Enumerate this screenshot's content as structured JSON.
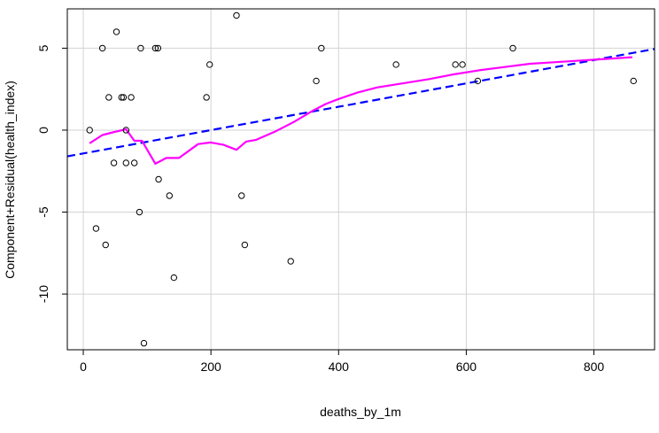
{
  "chart_data": {
    "type": "scatter",
    "xlabel": "deaths_by_1m",
    "ylabel": "Component+Residual(health_index)",
    "xlim": [
      -25,
      895
    ],
    "ylim": [
      -13.4,
      7.4
    ],
    "x_ticks": [
      0,
      200,
      400,
      600,
      800
    ],
    "y_ticks": [
      -10,
      -5,
      0,
      5
    ],
    "x_tick_labels": [
      "0",
      "200",
      "400",
      "600",
      "800"
    ],
    "y_tick_labels": [
      "-10",
      "-5",
      "0",
      "5"
    ],
    "grid": true,
    "points": [
      {
        "x": 10,
        "y": 0
      },
      {
        "x": 20,
        "y": -6
      },
      {
        "x": 30,
        "y": 5
      },
      {
        "x": 35,
        "y": -7
      },
      {
        "x": 40,
        "y": 2
      },
      {
        "x": 48,
        "y": -2
      },
      {
        "x": 52,
        "y": 6
      },
      {
        "x": 60,
        "y": 2
      },
      {
        "x": 63,
        "y": 2
      },
      {
        "x": 67,
        "y": 0
      },
      {
        "x": 67,
        "y": -2
      },
      {
        "x": 75,
        "y": 2
      },
      {
        "x": 80,
        "y": -2
      },
      {
        "x": 88,
        "y": -5
      },
      {
        "x": 90,
        "y": 5
      },
      {
        "x": 95,
        "y": -13
      },
      {
        "x": 113,
        "y": 5
      },
      {
        "x": 117,
        "y": 5
      },
      {
        "x": 118,
        "y": -3
      },
      {
        "x": 135,
        "y": -4
      },
      {
        "x": 142,
        "y": -9
      },
      {
        "x": 193,
        "y": 2
      },
      {
        "x": 198,
        "y": 4
      },
      {
        "x": 240,
        "y": 7
      },
      {
        "x": 248,
        "y": -4
      },
      {
        "x": 253,
        "y": -7
      },
      {
        "x": 325,
        "y": -8
      },
      {
        "x": 365,
        "y": 3
      },
      {
        "x": 373,
        "y": 5
      },
      {
        "x": 490,
        "y": 4
      },
      {
        "x": 583,
        "y": 4
      },
      {
        "x": 594,
        "y": 4
      },
      {
        "x": 618,
        "y": 3
      },
      {
        "x": 673,
        "y": 5
      },
      {
        "x": 862,
        "y": 3
      }
    ],
    "series": [
      {
        "type": "line",
        "style": "dashed",
        "color": "#0000ff",
        "x": [
          -25,
          895
        ],
        "y": [
          -1.6,
          4.95
        ]
      },
      {
        "type": "line",
        "style": "solid",
        "color": "#ff00ff",
        "x": [
          10,
          30,
          50,
          67,
          80,
          92,
          113,
          130,
          150,
          180,
          200,
          220,
          240,
          255,
          270,
          300,
          330,
          360,
          380,
          400,
          430,
          460,
          500,
          540,
          580,
          620,
          660,
          700,
          740,
          780,
          820,
          860
        ],
        "y": [
          -0.8,
          -0.3,
          -0.1,
          0.05,
          -0.65,
          -0.65,
          -2.05,
          -1.7,
          -1.7,
          -0.85,
          -0.75,
          -0.9,
          -1.2,
          -0.7,
          -0.6,
          -0.1,
          0.5,
          1.2,
          1.6,
          1.9,
          2.3,
          2.6,
          2.85,
          3.1,
          3.4,
          3.65,
          3.85,
          4.05,
          4.15,
          4.25,
          4.35,
          4.45
        ]
      }
    ]
  }
}
